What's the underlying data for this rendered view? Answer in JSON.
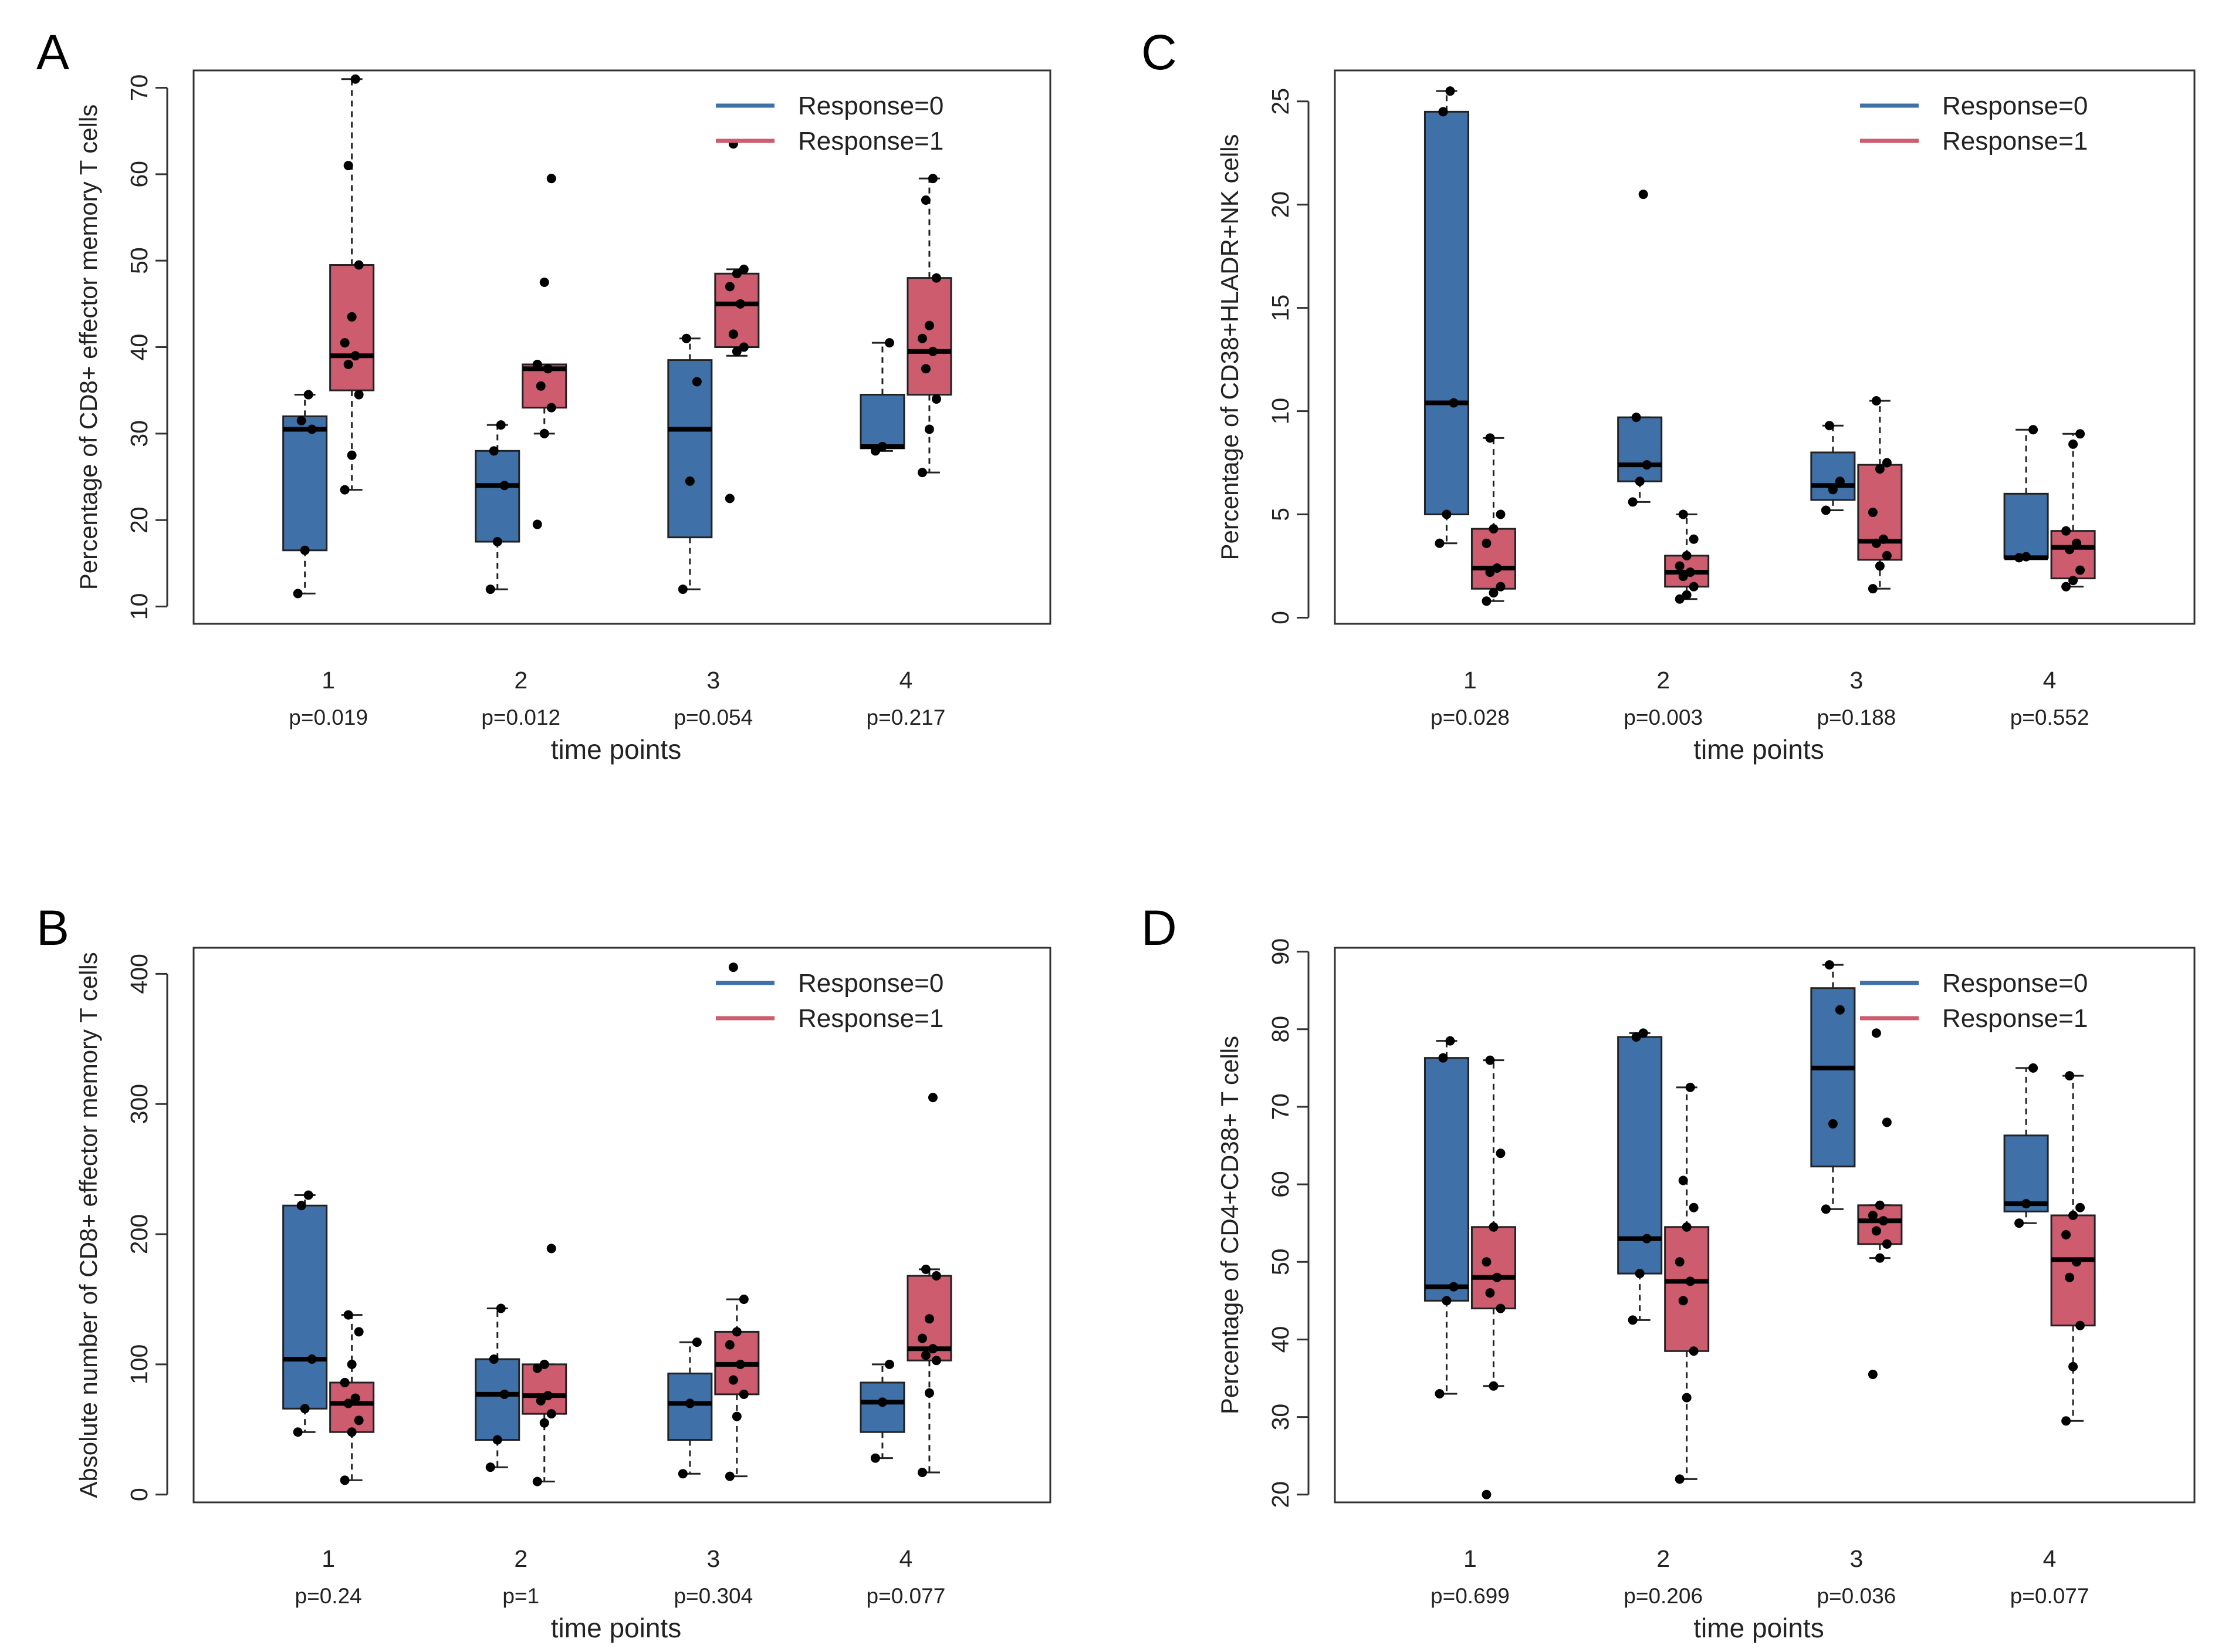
{
  "colors": {
    "group0": "#3f71a8",
    "group1": "#cd5c6f",
    "text": "#222222"
  },
  "chart_data": [
    {
      "type": "box",
      "panel_label": "A",
      "ylabel": "Percentage of CD8+ effector memory T cells",
      "xlabel": "time points",
      "categories": [
        "1",
        "2",
        "3",
        "4"
      ],
      "pvalues": [
        "p=0.019",
        "p=0.012",
        "p=0.054",
        "p=0.217"
      ],
      "ylim": [
        8,
        72
      ],
      "yticks": [
        10,
        20,
        30,
        40,
        50,
        60,
        70
      ],
      "legend": {
        "position": "top-right",
        "entries": [
          "Response=0",
          "Response=1"
        ]
      },
      "series": [
        {
          "name": "Response=0",
          "boxes": [
            {
              "q1": 16.5,
              "med": 30.5,
              "q3": 32,
              "wlo": 11.5,
              "whi": 34.5,
              "pts": [
                11.5,
                16.5,
                30.5,
                31.5,
                34.5
              ]
            },
            {
              "q1": 17.5,
              "med": 24,
              "q3": 28,
              "wlo": 12,
              "whi": 31,
              "pts": [
                12,
                17.5,
                24,
                28,
                31
              ]
            },
            {
              "q1": 18,
              "med": 30.5,
              "q3": 38.5,
              "wlo": 12,
              "whi": 41,
              "pts": [
                12,
                24.5,
                36,
                41
              ]
            },
            {
              "q1": 28.3,
              "med": 28.5,
              "q3": 34.5,
              "wlo": 28,
              "whi": 40.5,
              "pts": [
                28,
                28.5,
                40.5
              ]
            }
          ]
        },
        {
          "name": "Response=1",
          "boxes": [
            {
              "q1": 35,
              "med": 39,
              "q3": 49.5,
              "wlo": 23.5,
              "whi": 71,
              "pts": [
                23.5,
                27.5,
                34.5,
                38,
                39,
                40.5,
                43.5,
                49.5,
                61,
                71
              ]
            },
            {
              "q1": 33,
              "med": 37.5,
              "q3": 38,
              "wlo": 30,
              "whi": 38,
              "pts": [
                19.5,
                30,
                33,
                35.5,
                37.5,
                38,
                47.5,
                59.5
              ]
            },
            {
              "q1": 40,
              "med": 45,
              "q3": 48.5,
              "wlo": 39,
              "whi": 49,
              "pts": [
                22.5,
                39.5,
                40,
                41.5,
                45,
                47,
                48.5,
                49,
                63.5
              ]
            },
            {
              "q1": 34.5,
              "med": 39.5,
              "q3": 48,
              "wlo": 25.5,
              "whi": 59.5,
              "pts": [
                25.5,
                30.5,
                34,
                37.5,
                39.5,
                41,
                42.5,
                48,
                57,
                59.5
              ]
            }
          ]
        }
      ]
    },
    {
      "type": "box",
      "panel_label": "C",
      "ylabel": "Percentage of CD38+HLADR+NK cells",
      "xlabel": "time points",
      "categories": [
        "1",
        "2",
        "3",
        "4"
      ],
      "pvalues": [
        "p=0.028",
        "p=0.003",
        "p=0.188",
        "p=0.552"
      ],
      "ylim": [
        -0.3,
        26.5
      ],
      "yticks": [
        0,
        5,
        10,
        15,
        20,
        25
      ],
      "legend": {
        "position": "top-right",
        "entries": [
          "Response=0",
          "Response=1"
        ]
      },
      "series": [
        {
          "name": "Response=0",
          "boxes": [
            {
              "q1": 5,
              "med": 10.4,
              "q3": 24.5,
              "wlo": 3.6,
              "whi": 25.5,
              "pts": [
                3.6,
                5,
                10.4,
                24.5,
                25.5
              ]
            },
            {
              "q1": 6.6,
              "med": 7.4,
              "q3": 9.7,
              "wlo": 5.6,
              "whi": 9.7,
              "pts": [
                5.6,
                6.6,
                7.4,
                9.7,
                20.5
              ]
            },
            {
              "q1": 5.7,
              "med": 6.4,
              "q3": 8,
              "wlo": 5.2,
              "whi": 9.3,
              "pts": [
                5.2,
                6.2,
                6.6,
                9.3
              ]
            },
            {
              "q1": 2.9,
              "med": 2.9,
              "q3": 6,
              "wlo": 2.9,
              "whi": 9.1,
              "pts": [
                2.9,
                2.95,
                9.1
              ]
            }
          ]
        },
        {
          "name": "Response=1",
          "boxes": [
            {
              "q1": 1.4,
              "med": 2.4,
              "q3": 4.3,
              "wlo": 0.8,
              "whi": 8.7,
              "pts": [
                0.8,
                1.2,
                1.5,
                2.2,
                2.4,
                3.6,
                4.3,
                5,
                8.7
              ]
            },
            {
              "q1": 1.5,
              "med": 2.2,
              "q3": 3,
              "wlo": 0.9,
              "whi": 5,
              "pts": [
                0.9,
                1.1,
                1.5,
                2,
                2.2,
                2.5,
                3,
                3.8,
                5
              ]
            },
            {
              "q1": 2.8,
              "med": 3.7,
              "q3": 7.4,
              "wlo": 1.4,
              "whi": 10.5,
              "pts": [
                1.4,
                2.5,
                3,
                3.6,
                3.8,
                5.1,
                7.2,
                7.5,
                10.5
              ]
            },
            {
              "q1": 1.9,
              "med": 3.4,
              "q3": 4.2,
              "wlo": 1.5,
              "whi": 8.9,
              "pts": [
                1.5,
                1.8,
                2.3,
                3.3,
                3.6,
                4.2,
                8.4,
                8.9
              ]
            }
          ]
        }
      ]
    },
    {
      "type": "box",
      "panel_label": "B",
      "ylabel": "Absolute number of CD8+ effector memory T cells",
      "xlabel": "time points",
      "categories": [
        "1",
        "2",
        "3",
        "4"
      ],
      "pvalues": [
        "p=0.24",
        "p=1",
        "p=0.304",
        "p=0.077"
      ],
      "ylim": [
        -6,
        420
      ],
      "yticks": [
        0,
        100,
        200,
        300,
        400
      ],
      "legend": {
        "position": "top-right",
        "entries": [
          "Response=0",
          "Response=1"
        ]
      },
      "series": [
        {
          "name": "Response=0",
          "boxes": [
            {
              "q1": 66,
              "med": 104,
              "q3": 222,
              "wlo": 48,
              "whi": 230,
              "pts": [
                48,
                66,
                104,
                222,
                230
              ]
            },
            {
              "q1": 42,
              "med": 77,
              "q3": 104,
              "wlo": 21,
              "whi": 143,
              "pts": [
                21,
                42,
                77,
                104,
                143
              ]
            },
            {
              "q1": 42,
              "med": 70,
              "q3": 93,
              "wlo": 16,
              "whi": 117,
              "pts": [
                16,
                70,
                117
              ]
            },
            {
              "q1": 48,
              "med": 71,
              "q3": 86,
              "wlo": 28,
              "whi": 100,
              "pts": [
                28,
                71,
                100
              ]
            }
          ]
        },
        {
          "name": "Response=1",
          "boxes": [
            {
              "q1": 48,
              "med": 70,
              "q3": 86,
              "wlo": 11,
              "whi": 138,
              "pts": [
                11,
                48,
                57,
                70,
                74,
                86,
                100,
                125,
                138
              ]
            },
            {
              "q1": 62,
              "med": 76,
              "q3": 100,
              "wlo": 10,
              "whi": 100,
              "pts": [
                10,
                55,
                62,
                72,
                76,
                97,
                100,
                189
              ]
            },
            {
              "q1": 77,
              "med": 100,
              "q3": 125,
              "wlo": 14,
              "whi": 150,
              "pts": [
                14,
                60,
                77,
                88,
                100,
                115,
                125,
                150,
                405
              ]
            },
            {
              "q1": 103,
              "med": 112,
              "q3": 168,
              "wlo": 17,
              "whi": 173,
              "pts": [
                17,
                78,
                103,
                107,
                112,
                120,
                135,
                168,
                173,
                305
              ]
            }
          ]
        }
      ]
    },
    {
      "type": "box",
      "panel_label": "D",
      "ylabel": "Percentage of CD4+CD38+ T cells",
      "xlabel": "time points",
      "categories": [
        "1",
        "2",
        "3",
        "4"
      ],
      "pvalues": [
        "p=0.699",
        "p=0.206",
        "p=0.036",
        "p=0.077"
      ],
      "ylim": [
        19,
        90.5
      ],
      "yticks": [
        20,
        30,
        40,
        50,
        60,
        70,
        80,
        90
      ],
      "legend": {
        "position": "top-right",
        "entries": [
          "Response=0",
          "Response=1"
        ]
      },
      "series": [
        {
          "name": "Response=0",
          "boxes": [
            {
              "q1": 45,
              "med": 46.8,
              "q3": 76.3,
              "wlo": 33,
              "whi": 78.5,
              "pts": [
                33,
                45,
                46.8,
                76.3,
                78.5
              ]
            },
            {
              "q1": 48.5,
              "med": 53,
              "q3": 79,
              "wlo": 42.5,
              "whi": 79.5,
              "pts": [
                42.5,
                48.5,
                53,
                79,
                79.5
              ]
            },
            {
              "q1": 62.3,
              "med": 75,
              "q3": 85.3,
              "wlo": 56.8,
              "whi": 88.3,
              "pts": [
                56.8,
                67.8,
                82.5,
                88.3
              ]
            },
            {
              "q1": 56.5,
              "med": 57.5,
              "q3": 66.3,
              "wlo": 55,
              "whi": 75,
              "pts": [
                55,
                57.5,
                75
              ]
            }
          ]
        },
        {
          "name": "Response=1",
          "boxes": [
            {
              "q1": 44,
              "med": 48,
              "q3": 54.5,
              "wlo": 34,
              "whi": 76,
              "pts": [
                20,
                34,
                44,
                46,
                48,
                50,
                54.5,
                64,
                76
              ]
            },
            {
              "q1": 38.5,
              "med": 47.5,
              "q3": 54.5,
              "wlo": 22,
              "whi": 72.5,
              "pts": [
                22,
                32.5,
                38.5,
                45,
                47.5,
                50,
                54.5,
                57,
                60.5,
                72.5
              ]
            },
            {
              "q1": 52.3,
              "med": 55.3,
              "q3": 57.3,
              "wlo": 50.5,
              "whi": 57.3,
              "pts": [
                35.5,
                50.5,
                52.3,
                54,
                55.3,
                56,
                57.3,
                68,
                79.5
              ]
            },
            {
              "q1": 41.8,
              "med": 50.3,
              "q3": 56,
              "wlo": 29.5,
              "whi": 74,
              "pts": [
                29.5,
                36.5,
                41.8,
                48,
                50,
                53.5,
                56,
                57,
                74
              ]
            }
          ]
        }
      ]
    }
  ]
}
